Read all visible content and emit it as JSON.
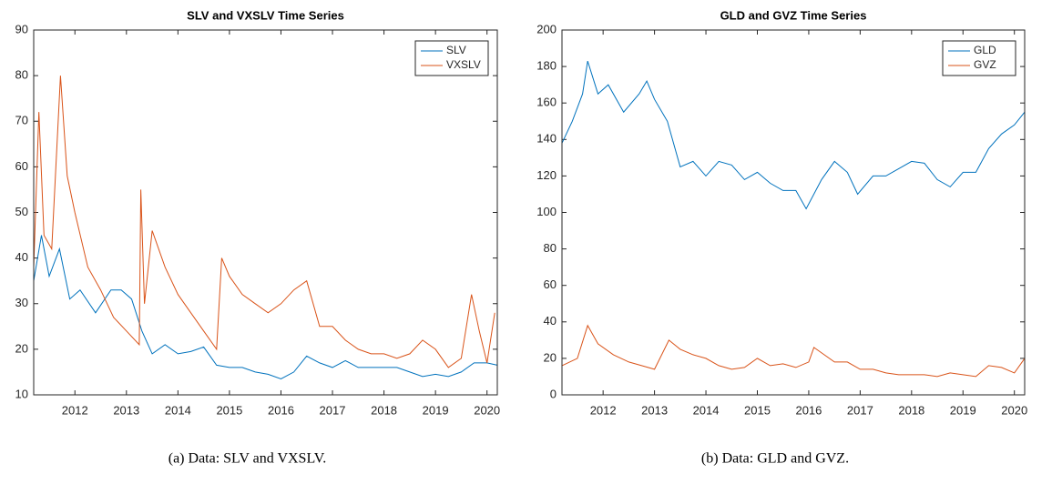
{
  "chart_data": [
    {
      "type": "line",
      "title": "SLV and VXSLV Time Series",
      "caption": "(a) Data: SLV and VXSLV.",
      "xlim": [
        2011.2,
        2020.2
      ],
      "xticks": [
        2012,
        2013,
        2014,
        2015,
        2016,
        2017,
        2018,
        2019,
        2020
      ],
      "ylim": [
        10,
        90
      ],
      "yticks": [
        10,
        20,
        30,
        40,
        50,
        60,
        70,
        80,
        90
      ],
      "legend": "upper-right",
      "series": [
        {
          "name": "SLV",
          "color": "#0072BD",
          "x": [
            2011.2,
            2011.35,
            2011.5,
            2011.7,
            2011.9,
            2012.1,
            2012.4,
            2012.7,
            2012.9,
            2013.1,
            2013.3,
            2013.5,
            2013.75,
            2014.0,
            2014.25,
            2014.5,
            2014.75,
            2015.0,
            2015.25,
            2015.5,
            2015.75,
            2016.0,
            2016.25,
            2016.5,
            2016.75,
            2017.0,
            2017.25,
            2017.5,
            2017.75,
            2018.0,
            2018.25,
            2018.5,
            2018.75,
            2019.0,
            2019.25,
            2019.5,
            2019.75,
            2020.0,
            2020.2
          ],
          "values": [
            35,
            45,
            36,
            42,
            31,
            33,
            28,
            33,
            33,
            31,
            24,
            19,
            21,
            19,
            19.5,
            20.5,
            16.5,
            16,
            16,
            15,
            14.5,
            13.5,
            15,
            18.5,
            17,
            16,
            17.5,
            16,
            16,
            16,
            16,
            15,
            14,
            14.5,
            14,
            15,
            17,
            17,
            16.5
          ]
        },
        {
          "name": "VXSLV",
          "color": "#D95319",
          "x": [
            2011.2,
            2011.3,
            2011.4,
            2011.55,
            2011.72,
            2011.85,
            2012.0,
            2012.25,
            2012.5,
            2012.75,
            2013.0,
            2013.25,
            2013.28,
            2013.35,
            2013.5,
            2013.75,
            2014.0,
            2014.25,
            2014.5,
            2014.75,
            2014.85,
            2015.0,
            2015.25,
            2015.5,
            2015.75,
            2016.0,
            2016.25,
            2016.5,
            2016.75,
            2017.0,
            2017.25,
            2017.5,
            2017.75,
            2018.0,
            2018.25,
            2018.5,
            2018.75,
            2019.0,
            2019.25,
            2019.5,
            2019.7,
            2019.85,
            2020.0,
            2020.15
          ],
          "values": [
            38,
            72,
            45,
            42,
            80,
            58,
            50,
            38,
            33,
            27,
            24,
            21,
            55,
            30,
            46,
            38,
            32,
            28,
            24,
            20,
            40,
            36,
            32,
            30,
            28,
            30,
            33,
            35,
            25,
            25,
            22,
            20,
            19,
            19,
            18,
            19,
            22,
            20,
            16,
            18,
            32,
            24,
            17,
            28
          ]
        }
      ]
    },
    {
      "type": "line",
      "title": "GLD and GVZ Time Series",
      "caption": "(b) Data: GLD and GVZ.",
      "xlim": [
        2011.2,
        2020.2
      ],
      "xticks": [
        2012,
        2013,
        2014,
        2015,
        2016,
        2017,
        2018,
        2019,
        2020
      ],
      "ylim": [
        0,
        200
      ],
      "yticks": [
        0,
        20,
        40,
        60,
        80,
        100,
        120,
        140,
        160,
        180,
        200
      ],
      "legend": "upper-right",
      "series": [
        {
          "name": "GLD",
          "color": "#0072BD",
          "x": [
            2011.2,
            2011.4,
            2011.6,
            2011.7,
            2011.9,
            2012.1,
            2012.4,
            2012.7,
            2012.85,
            2013.0,
            2013.25,
            2013.5,
            2013.75,
            2014.0,
            2014.25,
            2014.5,
            2014.75,
            2015.0,
            2015.25,
            2015.5,
            2015.75,
            2015.95,
            2016.25,
            2016.5,
            2016.75,
            2016.95,
            2017.25,
            2017.5,
            2017.75,
            2018.0,
            2018.25,
            2018.5,
            2018.75,
            2019.0,
            2019.25,
            2019.5,
            2019.75,
            2020.0,
            2020.2
          ],
          "values": [
            138,
            150,
            165,
            183,
            165,
            170,
            155,
            165,
            172,
            162,
            150,
            125,
            128,
            120,
            128,
            126,
            118,
            122,
            116,
            112,
            112,
            102,
            118,
            128,
            122,
            110,
            120,
            120,
            124,
            128,
            127,
            118,
            114,
            122,
            122,
            135,
            143,
            148,
            155
          ]
        },
        {
          "name": "GVZ",
          "color": "#D95319",
          "x": [
            2011.2,
            2011.5,
            2011.7,
            2011.9,
            2012.2,
            2012.5,
            2012.75,
            2013.0,
            2013.28,
            2013.5,
            2013.75,
            2014.0,
            2014.25,
            2014.5,
            2014.75,
            2015.0,
            2015.25,
            2015.5,
            2015.75,
            2016.0,
            2016.1,
            2016.5,
            2016.75,
            2017.0,
            2017.25,
            2017.5,
            2017.75,
            2018.0,
            2018.25,
            2018.5,
            2018.75,
            2019.0,
            2019.25,
            2019.5,
            2019.75,
            2020.0,
            2020.2
          ],
          "values": [
            16,
            20,
            38,
            28,
            22,
            18,
            16,
            14,
            30,
            25,
            22,
            20,
            16,
            14,
            15,
            20,
            16,
            17,
            15,
            18,
            26,
            18,
            18,
            14,
            14,
            12,
            11,
            11,
            11,
            10,
            12,
            11,
            10,
            16,
            15,
            12,
            20
          ]
        }
      ]
    }
  ]
}
